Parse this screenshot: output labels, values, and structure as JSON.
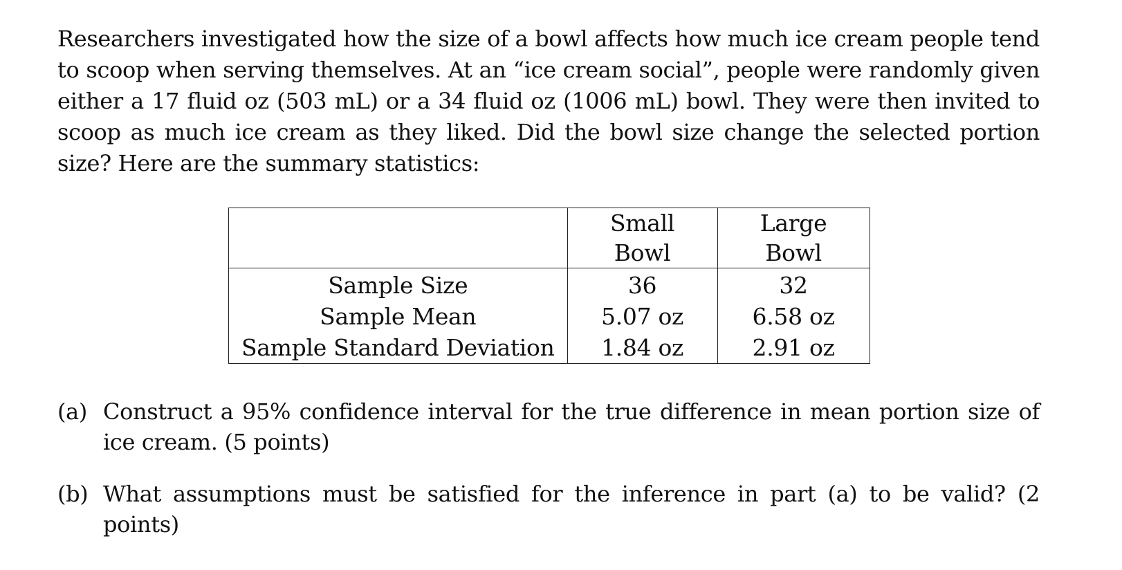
{
  "intro": "Researchers investigated how the size of a bowl affects how much ice cream people tend to scoop when serving themselves. At an “ice cream social”, people were randomly given either a 17 fluid oz (503 mL) or a 34 fluid oz (1006 mL) bowl. They were then invited to scoop as much ice cream as they liked. Did the bowl size change the selected portion size? Here are the summary statistics:",
  "table": {
    "headers": [
      "",
      "Small Bowl",
      "Large Bowl"
    ],
    "rows": [
      {
        "label": "Sample Size",
        "small": "36",
        "large": "32"
      },
      {
        "label": "Sample Mean",
        "small": "5.07 oz",
        "large": "6.58 oz"
      },
      {
        "label": "Sample Standard Deviation",
        "small": "1.84 oz",
        "large": "2.91 oz"
      }
    ]
  },
  "questions": [
    {
      "marker": "(a)",
      "text": "Construct a 95% confidence interval for the true difference in mean portion size of ice cream. (5 points)"
    },
    {
      "marker": "(b)",
      "text": "What assumptions must be satisfied for the inference in part (a) to be valid? (2 points)"
    }
  ]
}
